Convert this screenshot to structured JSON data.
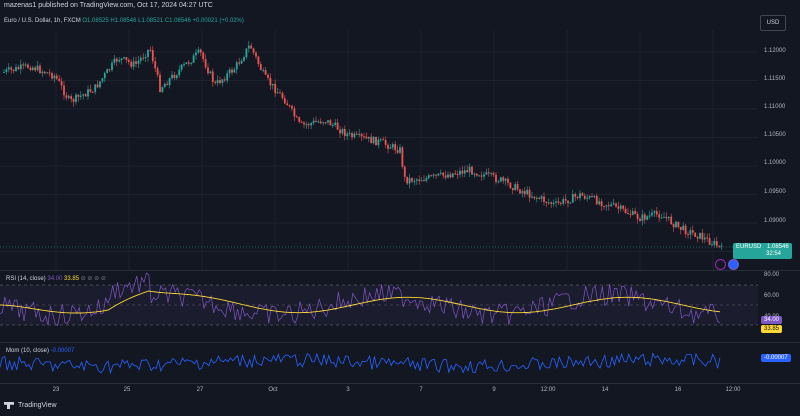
{
  "header": {
    "text": "mazenas1 published on TradingView.com, Oct 17, 2024 04:27 UTC"
  },
  "legend": {
    "title": "Euro / U.S. Dollar, 1h, FXCM",
    "open": "O1.08525",
    "high": "H1.08546",
    "low": "L1.08521",
    "close": "C1.08546",
    "change": "+0.00021 (+0.02%)"
  },
  "currency_button": "USD",
  "price_axis": {
    "labels": [
      "1.12000",
      "1.11500",
      "1.11000",
      "1.10500",
      "1.10000",
      "1.09500",
      "1.09000"
    ]
  },
  "price_tag": {
    "symbol": "EURUSD",
    "price": "1.08546",
    "countdown": "32:54"
  },
  "rsi": {
    "legend": "RSI (14, close)",
    "value1": "34.00",
    "value2": "33.85",
    "axis_labels": [
      "80.00",
      "60.00",
      "40.00"
    ],
    "tag_rsi": "34.00",
    "tag_ma": "33.85"
  },
  "momentum": {
    "legend": "Mom (10, close)",
    "value": "-0.00007",
    "tag": "-0.00007"
  },
  "time_axis": {
    "labels": [
      "23",
      "25",
      "27",
      "Oct",
      "3",
      "7",
      "9",
      "12:00",
      "14",
      "16",
      "12:00"
    ]
  },
  "footer": {
    "brand": "TradingView"
  },
  "colors": {
    "up": "#26a69a",
    "down": "#ef5350",
    "rsi": "#7e57c2",
    "rsi_ma": "#fdd835",
    "momentum": "#2962ff",
    "bg": "#131722"
  }
}
